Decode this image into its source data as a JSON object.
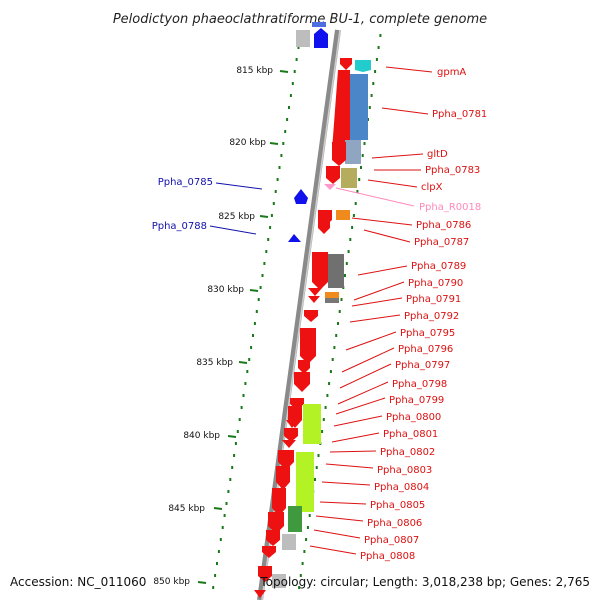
{
  "title": "Pelodictyon phaeoclathratiforme BU-1, complete genome",
  "footer": {
    "accession": "Accession: NC_011060",
    "summary": "Topology: circular; Length: 3,018,238 bp; Genes: 2,765"
  },
  "colors": {
    "background": "#ffffff",
    "backbone": "#8a8a8a",
    "forward_gene": "#ee1111",
    "reverse_gene": "#1111ee",
    "rna_gene": "#ff99cc",
    "label_forward": "#dd1111",
    "label_reverse": "#1111aa",
    "label_rna": "#ff88bb",
    "tick": "#1a7a1a"
  },
  "ticks": [
    {
      "label": "815 kbp"
    },
    {
      "label": "820 kbp"
    },
    {
      "label": "825 kbp"
    },
    {
      "label": "830 kbp"
    },
    {
      "label": "835 kbp"
    },
    {
      "label": "840 kbp"
    },
    {
      "label": "845 kbp"
    },
    {
      "label": "850 kbp"
    }
  ],
  "labels_right": [
    {
      "text": "gpmA",
      "type": "cds"
    },
    {
      "text": "Ppha_0781",
      "type": "cds"
    },
    {
      "text": "gltD",
      "type": "cds"
    },
    {
      "text": "Ppha_0783",
      "type": "cds"
    },
    {
      "text": "clpX",
      "type": "cds"
    },
    {
      "text": "Ppha_R0018",
      "type": "rna"
    },
    {
      "text": "Ppha_0786",
      "type": "cds"
    },
    {
      "text": "Ppha_0787",
      "type": "cds"
    },
    {
      "text": "Ppha_0789",
      "type": "cds"
    },
    {
      "text": "Ppha_0790",
      "type": "cds"
    },
    {
      "text": "Ppha_0791",
      "type": "cds"
    },
    {
      "text": "Ppha_0792",
      "type": "cds"
    },
    {
      "text": "Ppha_0795",
      "type": "cds"
    },
    {
      "text": "Ppha_0796",
      "type": "cds"
    },
    {
      "text": "Ppha_0797",
      "type": "cds"
    },
    {
      "text": "Ppha_0798",
      "type": "cds"
    },
    {
      "text": "Ppha_0799",
      "type": "cds"
    },
    {
      "text": "Ppha_0800",
      "type": "cds"
    },
    {
      "text": "Ppha_0801",
      "type": "cds"
    },
    {
      "text": "Ppha_0802",
      "type": "cds"
    },
    {
      "text": "Ppha_0803",
      "type": "cds"
    },
    {
      "text": "Ppha_0804",
      "type": "cds"
    },
    {
      "text": "Ppha_0805",
      "type": "cds"
    },
    {
      "text": "Ppha_0806",
      "type": "cds"
    },
    {
      "text": "Ppha_0807",
      "type": "cds"
    },
    {
      "text": "Ppha_0808",
      "type": "cds"
    }
  ],
  "labels_left": [
    {
      "text": "Ppha_0785",
      "type": "cds-reverse"
    },
    {
      "text": "Ppha_0788",
      "type": "cds-reverse"
    }
  ]
}
